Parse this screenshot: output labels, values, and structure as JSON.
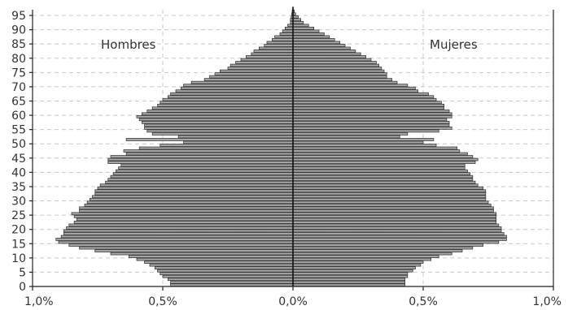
{
  "chart_data": {
    "type": "bar",
    "orientation": "horizontal",
    "subtype": "population-pyramid",
    "title": "",
    "xlabel": "",
    "ylabel": "",
    "series": [
      {
        "name": "Hombres",
        "side": "left"
      },
      {
        "name": "Mujeres",
        "side": "right"
      }
    ],
    "ages": [
      0,
      1,
      2,
      3,
      4,
      5,
      6,
      7,
      8,
      9,
      10,
      11,
      12,
      13,
      14,
      15,
      16,
      17,
      18,
      19,
      20,
      21,
      22,
      23,
      24,
      25,
      26,
      27,
      28,
      29,
      30,
      31,
      32,
      33,
      34,
      35,
      36,
      37,
      38,
      39,
      40,
      41,
      42,
      43,
      44,
      45,
      46,
      47,
      48,
      49,
      50,
      51,
      52,
      53,
      54,
      55,
      56,
      57,
      58,
      59,
      60,
      61,
      62,
      63,
      64,
      65,
      66,
      67,
      68,
      69,
      70,
      71,
      72,
      73,
      74,
      75,
      76,
      77,
      78,
      79,
      80,
      81,
      82,
      83,
      84,
      85,
      86,
      87,
      88,
      89,
      90,
      91,
      92,
      93,
      94,
      95,
      96,
      97
    ],
    "hombres": [
      0.47,
      0.47,
      0.48,
      0.5,
      0.51,
      0.52,
      0.53,
      0.55,
      0.57,
      0.6,
      0.63,
      0.7,
      0.76,
      0.82,
      0.86,
      0.9,
      0.91,
      0.89,
      0.88,
      0.88,
      0.87,
      0.86,
      0.84,
      0.83,
      0.84,
      0.85,
      0.82,
      0.82,
      0.8,
      0.79,
      0.78,
      0.77,
      0.76,
      0.76,
      0.75,
      0.74,
      0.72,
      0.71,
      0.7,
      0.69,
      0.68,
      0.67,
      0.66,
      0.71,
      0.71,
      0.7,
      0.64,
      0.65,
      0.59,
      0.51,
      0.42,
      0.64,
      0.44,
      0.54,
      0.56,
      0.57,
      0.57,
      0.58,
      0.59,
      0.6,
      0.58,
      0.56,
      0.54,
      0.52,
      0.51,
      0.5,
      0.48,
      0.47,
      0.45,
      0.43,
      0.42,
      0.39,
      0.34,
      0.32,
      0.3,
      0.28,
      0.25,
      0.24,
      0.22,
      0.2,
      0.18,
      0.16,
      0.15,
      0.13,
      0.11,
      0.1,
      0.08,
      0.07,
      0.05,
      0.04,
      0.03,
      0.02,
      0.01,
      0.01,
      0.007,
      0.005,
      0.003,
      0.002
    ],
    "mujeres": [
      0.43,
      0.43,
      0.43,
      0.44,
      0.44,
      0.46,
      0.47,
      0.49,
      0.5,
      0.53,
      0.56,
      0.61,
      0.65,
      0.69,
      0.73,
      0.79,
      0.82,
      0.82,
      0.81,
      0.8,
      0.8,
      0.79,
      0.78,
      0.78,
      0.78,
      0.78,
      0.77,
      0.77,
      0.76,
      0.75,
      0.74,
      0.74,
      0.74,
      0.74,
      0.73,
      0.71,
      0.7,
      0.69,
      0.69,
      0.68,
      0.67,
      0.66,
      0.66,
      0.7,
      0.71,
      0.69,
      0.67,
      0.64,
      0.63,
      0.55,
      0.5,
      0.54,
      0.41,
      0.44,
      0.56,
      0.61,
      0.6,
      0.6,
      0.59,
      0.61,
      0.61,
      0.6,
      0.58,
      0.58,
      0.57,
      0.55,
      0.54,
      0.52,
      0.48,
      0.47,
      0.44,
      0.4,
      0.38,
      0.36,
      0.36,
      0.35,
      0.34,
      0.33,
      0.32,
      0.3,
      0.28,
      0.26,
      0.24,
      0.22,
      0.2,
      0.18,
      0.16,
      0.14,
      0.12,
      0.1,
      0.08,
      0.06,
      0.04,
      0.03,
      0.02,
      0.01,
      0.005,
      0.002
    ],
    "xlim": [
      -1.0,
      1.0
    ],
    "ylim": [
      0,
      97
    ],
    "x_ticks": [
      {
        "value": -1.0,
        "label": "1,0%"
      },
      {
        "value": -0.5,
        "label": "0,5%"
      },
      {
        "value": 0.0,
        "label": "0,0%"
      },
      {
        "value": 0.5,
        "label": "0,5%"
      },
      {
        "value": 1.0,
        "label": "1,0%"
      }
    ],
    "y_ticks": [
      {
        "value": 0,
        "label": "0"
      },
      {
        "value": 5,
        "label": "5"
      },
      {
        "value": 10,
        "label": "10"
      },
      {
        "value": 15,
        "label": "15"
      },
      {
        "value": 20,
        "label": "20"
      },
      {
        "value": 25,
        "label": "25"
      },
      {
        "value": 30,
        "label": "30"
      },
      {
        "value": 35,
        "label": "35"
      },
      {
        "value": 40,
        "label": "40"
      },
      {
        "value": 45,
        "label": "45"
      },
      {
        "value": 50,
        "label": "50"
      },
      {
        "value": 55,
        "label": "55"
      },
      {
        "value": 60,
        "label": "60"
      },
      {
        "value": 65,
        "label": "65"
      },
      {
        "value": 70,
        "label": "70"
      },
      {
        "value": 75,
        "label": "75"
      },
      {
        "value": 80,
        "label": "80"
      },
      {
        "value": 85,
        "label": "85"
      },
      {
        "value": 90,
        "label": "90"
      },
      {
        "value": 95,
        "label": "95"
      }
    ],
    "grid": true,
    "legend": [
      {
        "label": "Hombres",
        "position": "top-left"
      },
      {
        "label": "Mujeres",
        "position": "top-right"
      }
    ],
    "colors": {
      "bar_fill": "#a6a6a6",
      "bar_stroke": "#3a3a3a",
      "grid": "#c8c8c8",
      "axis": "#222222"
    }
  }
}
